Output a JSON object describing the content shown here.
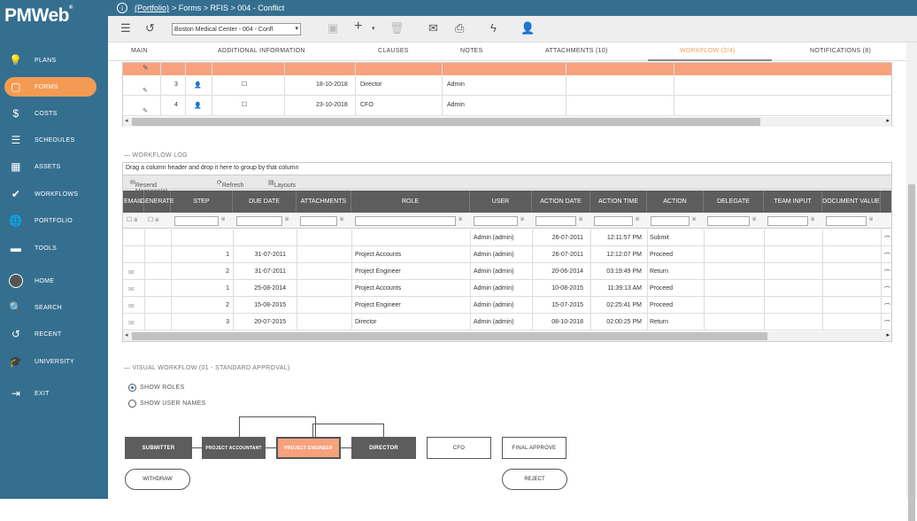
{
  "app": {
    "logo_text": "PMWeb",
    "logo_mark": "®"
  },
  "sidebar": {
    "items": [
      {
        "label": "PLANS",
        "icon": "lightbulb-icon",
        "glyph": "💡"
      },
      {
        "label": "FORMS",
        "icon": "forms-icon",
        "glyph": "▢"
      },
      {
        "label": "COSTS",
        "icon": "dollar-icon",
        "glyph": "$"
      },
      {
        "label": "SCHEDULES",
        "icon": "schedules-icon",
        "glyph": "☰"
      },
      {
        "label": "ASSETS",
        "icon": "building-icon",
        "glyph": "▦"
      },
      {
        "label": "WORKFLOWS",
        "icon": "checkmark-icon",
        "glyph": "✔"
      },
      {
        "label": "PORTFOLIO",
        "icon": "globe-icon",
        "glyph": "🌐"
      },
      {
        "label": "TOOLS",
        "icon": "toolbox-icon",
        "glyph": "▬"
      },
      {
        "label": "HOME",
        "icon": "avatar-icon",
        "glyph": ""
      },
      {
        "label": "SEARCH",
        "icon": "search-icon",
        "glyph": "🔍"
      },
      {
        "label": "RECENT",
        "icon": "history-icon",
        "glyph": "↺"
      },
      {
        "label": "UNIVERSITY",
        "icon": "graduation-cap-icon",
        "glyph": "🎓"
      },
      {
        "label": "EXIT",
        "icon": "exit-icon",
        "glyph": "⇥"
      }
    ]
  },
  "breadcrumb": {
    "portfolio": "(Portfolio)",
    "rest": "> Forms > RFIS > 004 - Conflict"
  },
  "toolbar": {
    "project": "Boston Medical Center - 004 - Confl"
  },
  "tabs": [
    "MAIN",
    "ADDITIONAL INFORMATION",
    "CLAUSES",
    "NOTES",
    "ATTACHMENTS (10)",
    "WORKFLOW (2/4)",
    "NOTIFICATIONS (8)"
  ],
  "steps_grid": {
    "rows": [
      {
        "step": "3",
        "date": "18-10-2018",
        "role": "Director",
        "user": "Admin"
      },
      {
        "step": "4",
        "date": "23-10-2018",
        "role": "CFO",
        "user": "Admin"
      }
    ]
  },
  "workflow_log": {
    "section_label": "WORKFLOW LOG",
    "group_hint": "Drag a column header and drop it here to group by that column",
    "resend_label": "Resend Message(s)",
    "refresh_label": "Refresh",
    "layouts_label": "Layouts",
    "columns": [
      "EMAIL",
      "GENERATE",
      "STEP",
      "DUE DATE",
      "ATTACHMENTS",
      "ROLE",
      "USER",
      "ACTION DATE",
      "ACTION TIME",
      "ACTION",
      "DELEGATE",
      "TEAM INPUT",
      "DOCUMENT VALUE"
    ],
    "rows": [
      {
        "mail": false,
        "step": "",
        "due": "",
        "role": "",
        "user": "Admin (admin)",
        "adate": "26-07-2011",
        "atime": "12:11:57 PM",
        "action": "Submit"
      },
      {
        "mail": false,
        "step": "1",
        "due": "31-07-2011",
        "role": "Project Accounts",
        "user": "Admin (admin)",
        "adate": "26-07-2011",
        "atime": "12:12:07 PM",
        "action": "Proceed"
      },
      {
        "mail": true,
        "step": "2",
        "due": "31-07-2011",
        "role": "Project Engineer",
        "user": "Admin (admin)",
        "adate": "20-06-2014",
        "atime": "03:19:49 PM",
        "action": "Return"
      },
      {
        "mail": true,
        "step": "1",
        "due": "25-08-2014",
        "role": "Project Accounts",
        "user": "Admin (admin)",
        "adate": "10-08-2015",
        "atime": "11:39:13 AM",
        "action": "Proceed"
      },
      {
        "mail": true,
        "step": "2",
        "due": "15-08-2015",
        "role": "Project Engineer",
        "user": "Admin (admin)",
        "adate": "15-07-2015",
        "atime": "02:25:41 PM",
        "action": "Proceed"
      },
      {
        "mail": true,
        "step": "3",
        "due": "20-07-2015",
        "role": "Director",
        "user": "Admin (admin)",
        "adate": "08-10-2018",
        "atime": "02:00:25 PM",
        "action": "Return"
      }
    ]
  },
  "visual_workflow": {
    "section_label": "VISUAL WORKFLOW (01 - STANDARD APPROVAL)",
    "show_roles": "SHOW ROLES",
    "show_user_names": "SHOW USER NAMES",
    "boxes": [
      "SUBMITTER",
      "PROJECT ACCOUNTANT",
      "PROJECT ENGINEER",
      "DIRECTOR",
      "CFO",
      "FINAL APPROVE"
    ],
    "withdraw": "WITHDRAW",
    "reject": "REJECT"
  }
}
